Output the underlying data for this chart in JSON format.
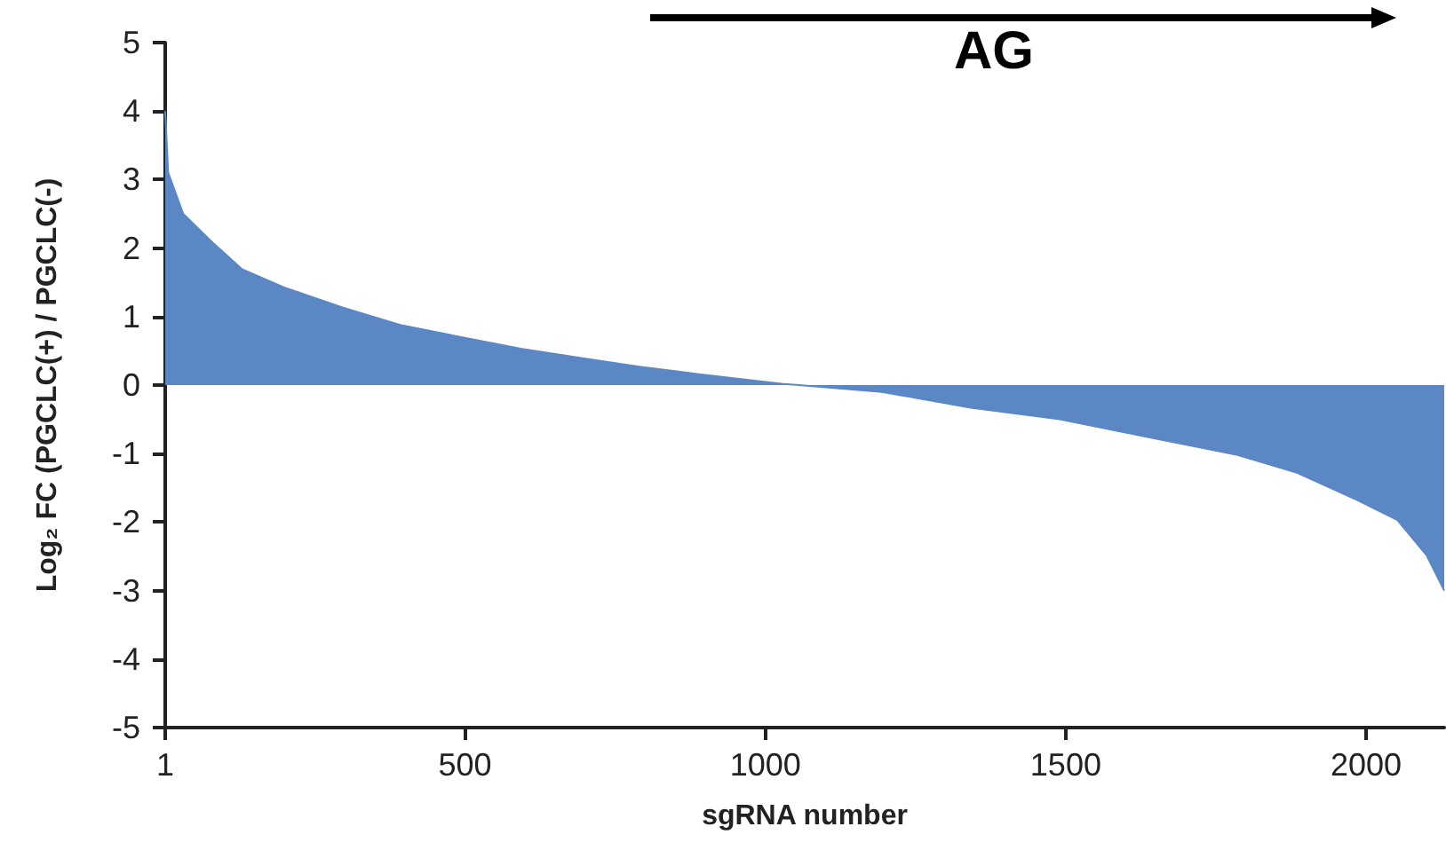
{
  "chart_data": {
    "type": "area",
    "xlabel": "sgRNA number",
    "ylabel": "Log₂ FC (PGCLC(+) / PGCLC(-)",
    "annotations": [
      "AG"
    ],
    "x": [
      1,
      6,
      31,
      80,
      129,
      198,
      297,
      396,
      494,
      593,
      691,
      790,
      889,
      1027,
      1056,
      1194,
      1342,
      1490,
      1638,
      1786,
      1885,
      1983,
      2052,
      2101,
      2130
    ],
    "series": [
      {
        "color": "#5b87c5",
        "values": [
          4.0,
          3.1,
          2.5,
          2.08,
          1.69,
          1.43,
          1.13,
          0.87,
          0.7,
          0.53,
          0.4,
          0.27,
          0.16,
          0.02,
          0,
          -0.1,
          -0.33,
          -0.5,
          -0.76,
          -1.02,
          -1.28,
          -1.67,
          -1.97,
          -2.49,
          -3.0
        ]
      }
    ],
    "xlim": [
      1,
      2130
    ],
    "xticks": [
      1,
      500,
      1000,
      1500,
      2000
    ],
    "ylim": [
      -5,
      5
    ],
    "yticks": [
      -5,
      -4,
      -3,
      -2,
      -1,
      0,
      1,
      2,
      3,
      4,
      5
    ],
    "grid": false,
    "marker": "none"
  }
}
